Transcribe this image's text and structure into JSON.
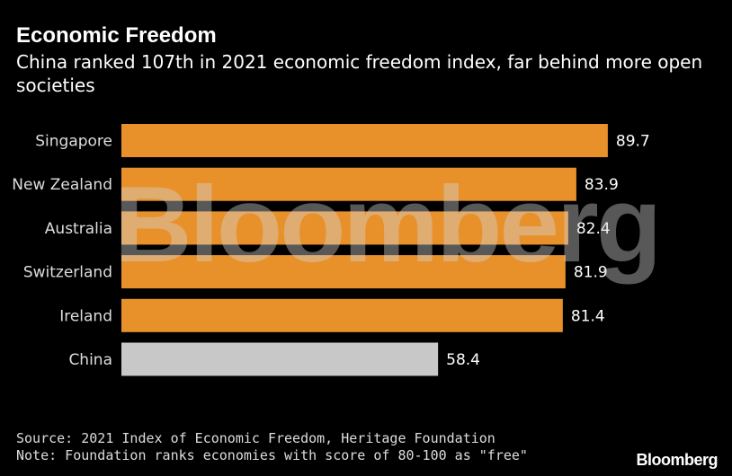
{
  "title": "Economic Freedom",
  "subtitle": "China ranked 107th in 2021 economic freedom index, far behind more open societies",
  "watermark": "Bloomberg",
  "source": "Source: 2021 Index of Economic Freedom, Heritage Foundation",
  "note": "Note: Foundation ranks economies with score of 80-100 as \"free\"",
  "brand": "Bloomberg",
  "colors": {
    "background": "#000000",
    "bar_highlight": "#e8912b",
    "bar_other": "#c8c8c8",
    "text": "#ffffff"
  },
  "chart_data": {
    "type": "bar",
    "orientation": "horizontal",
    "categories": [
      "Singapore",
      "New Zealand",
      "Australia",
      "Switzerland",
      "Ireland",
      "China"
    ],
    "values": [
      89.7,
      83.9,
      82.4,
      81.9,
      81.4,
      58.4
    ],
    "value_labels": [
      "89.7",
      "83.9",
      "82.4",
      "81.9",
      "81.4",
      "58.4"
    ],
    "bar_colors": [
      "#e8912b",
      "#e8912b",
      "#e8912b",
      "#e8912b",
      "#e8912b",
      "#c8c8c8"
    ],
    "xlim": [
      0,
      100
    ],
    "grid": false,
    "legend": "none",
    "title": "",
    "xlabel": "",
    "ylabel": ""
  }
}
